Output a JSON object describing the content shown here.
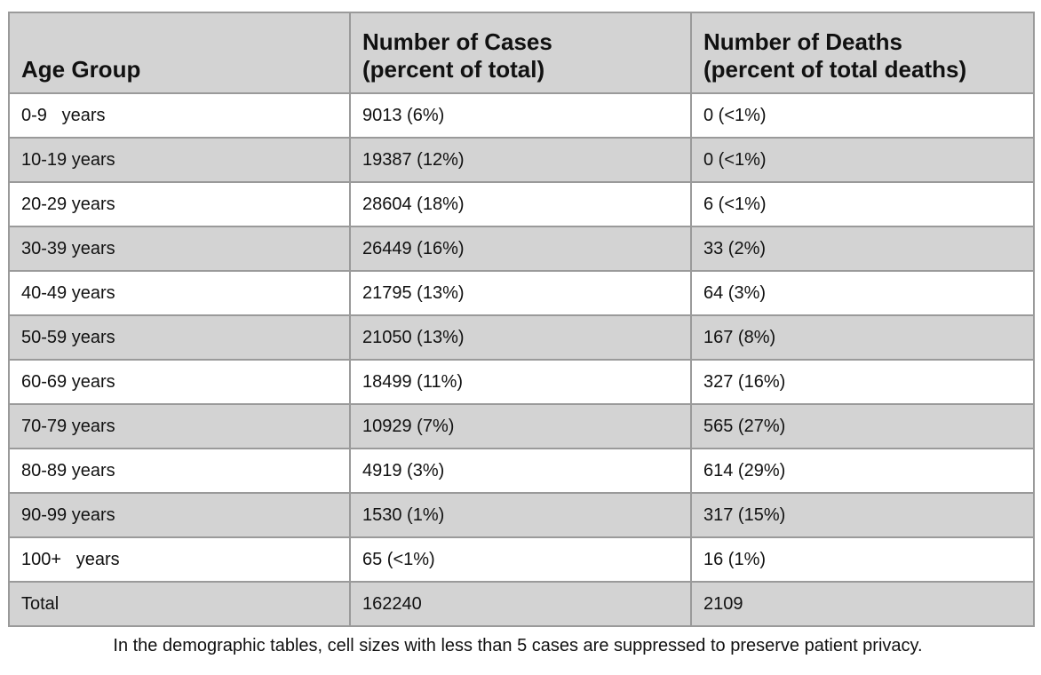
{
  "table": {
    "headers": [
      {
        "line1": "Age Group",
        "line2": ""
      },
      {
        "line1": "Number of Cases",
        "line2": "(percent of total)"
      },
      {
        "line1": "Number of Deaths",
        "line2": "(percent of total deaths)"
      }
    ],
    "rows": [
      {
        "age": "0-9   years",
        "cases": "9013 (6%)",
        "deaths": "0 (<1%)"
      },
      {
        "age": "10-19 years",
        "cases": "19387 (12%)",
        "deaths": "0 (<1%)"
      },
      {
        "age": "20-29 years",
        "cases": "28604 (18%)",
        "deaths": "6 (<1%)"
      },
      {
        "age": "30-39 years",
        "cases": "26449 (16%)",
        "deaths": "33 (2%)"
      },
      {
        "age": "40-49 years",
        "cases": "21795 (13%)",
        "deaths": "64 (3%)"
      },
      {
        "age": "50-59 years",
        "cases": "21050 (13%)",
        "deaths": "167 (8%)"
      },
      {
        "age": "60-69 years",
        "cases": "18499 (11%)",
        "deaths": "327 (16%)"
      },
      {
        "age": "70-79 years",
        "cases": "10929 (7%)",
        "deaths": "565 (27%)"
      },
      {
        "age": "80-89 years",
        "cases": "4919 (3%)",
        "deaths": "614 (29%)"
      },
      {
        "age": "90-99 years",
        "cases": "1530 (1%)",
        "deaths": "317 (15%)"
      },
      {
        "age": "100+   years",
        "cases": "65 (<1%)",
        "deaths": "16 (1%)"
      },
      {
        "age": "Total",
        "cases": "162240",
        "deaths": "2109"
      }
    ]
  },
  "footnote": "In the demographic tables, cell sizes with less than 5 cases are suppressed to preserve patient privacy.",
  "colors": {
    "header_bg": "#d3d3d3",
    "shaded_row_bg": "#d3d3d3",
    "plain_row_bg": "#ffffff",
    "border": "#9a9a9a"
  }
}
